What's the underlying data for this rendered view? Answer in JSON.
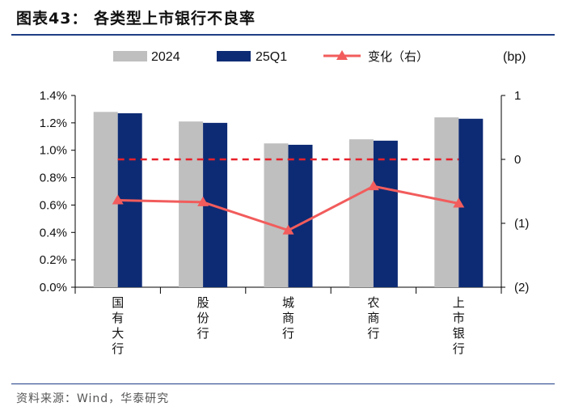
{
  "header": {
    "title": "图表43：  各类型上市银行不良率"
  },
  "footer": {
    "source": "资料来源：Wind，华泰研究"
  },
  "colors": {
    "s2024": "#bfbfbf",
    "s25q1": "#0d2b74",
    "change": "#f25c5c",
    "rule": "#1f3f86"
  },
  "chart_data": {
    "type": "bar",
    "categories": [
      "国有大行",
      "股份行",
      "城商行",
      "农商行",
      "上市银行"
    ],
    "series": [
      {
        "name": "2024",
        "axis": "left",
        "values": [
          1.28,
          1.21,
          1.05,
          1.08,
          1.24
        ]
      },
      {
        "name": "25Q1",
        "axis": "left",
        "values": [
          1.27,
          1.2,
          1.04,
          1.07,
          1.23
        ]
      },
      {
        "name": "变化（右）",
        "axis": "right",
        "type": "line",
        "values": [
          -0.64,
          -0.67,
          -1.11,
          -0.42,
          -0.69
        ]
      }
    ],
    "yleft": {
      "min": 0,
      "max": 1.4,
      "ticks": [
        "0.0%",
        "0.2%",
        "0.4%",
        "0.6%",
        "0.8%",
        "1.0%",
        "1.2%",
        "1.4%"
      ]
    },
    "yright": {
      "min": -2,
      "max": 1,
      "ticks": [
        "(2)",
        "(1)",
        "0",
        "1"
      ],
      "unit": "(bp)"
    },
    "reference_line": {
      "axis": "right",
      "value": 0,
      "style": "dashed"
    },
    "legend_position": "top"
  }
}
